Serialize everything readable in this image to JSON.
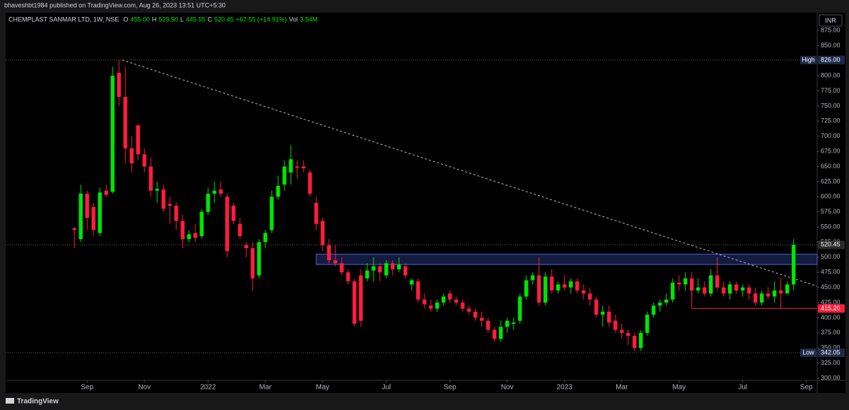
{
  "header": {
    "publisher": "bhaveshbt1984 published on TradingView.com, Aug 26, 2023 13:51 UTC+5:30"
  },
  "footer": {
    "brand": "TradingView"
  },
  "chart_data": {
    "type": "candlestick",
    "symbol": "CHEMPLAST SANMAR LTD, 1W, NSE",
    "ohlc_legend": [
      {
        "label": "O",
        "value": "455.00"
      },
      {
        "label": "H",
        "value": "529.90"
      },
      {
        "label": "L",
        "value": "445.55"
      },
      {
        "label": "C",
        "value": "520.45"
      },
      {
        "label": "",
        "value": "+67.55 (+14.91%)"
      }
    ],
    "volume": {
      "label": "Vol",
      "value": "3.54M"
    },
    "currency": "INR",
    "up_color": "#00e600",
    "down_color": "#ff1e3c",
    "grid": false,
    "candles": [
      [
        548,
        550,
        515,
        545
      ],
      [
        530,
        620,
        525,
        605
      ],
      [
        605,
        610,
        545,
        565
      ],
      [
        583,
        590,
        535,
        545
      ],
      [
        540,
        615,
        535,
        607
      ],
      [
        610,
        620,
        600,
        603
      ],
      [
        608,
        815,
        605,
        800
      ],
      [
        805,
        826,
        750,
        765
      ],
      [
        765,
        815,
        655,
        680
      ],
      [
        680,
        700,
        640,
        655
      ],
      [
        718,
        720,
        660,
        670
      ],
      [
        670,
        680,
        640,
        650
      ],
      [
        650,
        665,
        600,
        610
      ],
      [
        610,
        625,
        590,
        613
      ],
      [
        612,
        620,
        575,
        580
      ],
      [
        588,
        600,
        555,
        585
      ],
      [
        585,
        590,
        545,
        560
      ],
      [
        560,
        570,
        515,
        530
      ],
      [
        530,
        545,
        525,
        538
      ],
      [
        540,
        555,
        525,
        532
      ],
      [
        535,
        580,
        530,
        575
      ],
      [
        575,
        615,
        570,
        605
      ],
      [
        605,
        625,
        590,
        610
      ],
      [
        612,
        625,
        600,
        605
      ],
      [
        600,
        605,
        500,
        510
      ],
      [
        585,
        590,
        555,
        560
      ],
      [
        555,
        565,
        530,
        535
      ],
      [
        520,
        525,
        500,
        515
      ],
      [
        515,
        525,
        445,
        465
      ],
      [
        470,
        530,
        465,
        525
      ],
      [
        525,
        545,
        515,
        540
      ],
      [
        545,
        610,
        540,
        600
      ],
      [
        600,
        635,
        595,
        618
      ],
      [
        620,
        660,
        610,
        650
      ],
      [
        640,
        685,
        620,
        662
      ],
      [
        650,
        660,
        630,
        648
      ],
      [
        650,
        660,
        640,
        647
      ],
      [
        640,
        645,
        600,
        605
      ],
      [
        590,
        600,
        545,
        555
      ],
      [
        560,
        565,
        510,
        520
      ],
      [
        520,
        530,
        490,
        495
      ],
      [
        495,
        520,
        485,
        490
      ],
      [
        490,
        500,
        470,
        475
      ],
      [
        475,
        480,
        455,
        460
      ],
      [
        460,
        465,
        385,
        390
      ],
      [
        470,
        480,
        385,
        395
      ],
      [
        465,
        490,
        460,
        478
      ],
      [
        478,
        500,
        460,
        485
      ],
      [
        485,
        490,
        460,
        475
      ],
      [
        470,
        495,
        465,
        490
      ],
      [
        490,
        495,
        470,
        480
      ],
      [
        480,
        500,
        475,
        488
      ],
      [
        485,
        490,
        465,
        470
      ],
      [
        455,
        465,
        445,
        462
      ],
      [
        460,
        465,
        425,
        430
      ],
      [
        430,
        440,
        415,
        422
      ],
      [
        420,
        430,
        410,
        415
      ],
      [
        415,
        430,
        410,
        425
      ],
      [
        425,
        440,
        420,
        435
      ],
      [
        440,
        445,
        425,
        430
      ],
      [
        430,
        435,
        420,
        425
      ],
      [
        425,
        430,
        410,
        415
      ],
      [
        415,
        420,
        405,
        410
      ],
      [
        410,
        415,
        395,
        400
      ],
      [
        400,
        410,
        385,
        395
      ],
      [
        395,
        400,
        375,
        380
      ],
      [
        380,
        385,
        360,
        365
      ],
      [
        365,
        395,
        360,
        385
      ],
      [
        385,
        400,
        375,
        395
      ],
      [
        390,
        400,
        380,
        392
      ],
      [
        395,
        440,
        390,
        435
      ],
      [
        435,
        470,
        430,
        462
      ],
      [
        462,
        475,
        455,
        470
      ],
      [
        470,
        500,
        420,
        425
      ],
      [
        425,
        475,
        420,
        468
      ],
      [
        468,
        480,
        440,
        445
      ],
      [
        445,
        460,
        440,
        455
      ],
      [
        455,
        470,
        445,
        450
      ],
      [
        450,
        465,
        440,
        460
      ],
      [
        460,
        465,
        440,
        445
      ],
      [
        445,
        455,
        430,
        440
      ],
      [
        440,
        450,
        420,
        430
      ],
      [
        430,
        435,
        400,
        405
      ],
      [
        405,
        420,
        385,
        410
      ],
      [
        410,
        420,
        385,
        392
      ],
      [
        395,
        405,
        375,
        380
      ],
      [
        380,
        390,
        365,
        375
      ],
      [
        375,
        380,
        355,
        370
      ],
      [
        370,
        375,
        345,
        350
      ],
      [
        350,
        380,
        345,
        375
      ],
      [
        375,
        410,
        370,
        405
      ],
      [
        405,
        425,
        400,
        420
      ],
      [
        420,
        430,
        410,
        425
      ],
      [
        425,
        440,
        420,
        430
      ],
      [
        430,
        465,
        425,
        458
      ],
      [
        458,
        470,
        445,
        455
      ],
      [
        455,
        475,
        445,
        465
      ],
      [
        465,
        475,
        435,
        445
      ],
      [
        445,
        465,
        440,
        450
      ],
      [
        450,
        460,
        435,
        440
      ],
      [
        440,
        480,
        435,
        470
      ],
      [
        470,
        500,
        445,
        450
      ],
      [
        450,
        460,
        435,
        440
      ],
      [
        440,
        460,
        430,
        455
      ],
      [
        455,
        460,
        440,
        445
      ],
      [
        445,
        455,
        435,
        450
      ],
      [
        450,
        455,
        430,
        440
      ],
      [
        440,
        450,
        420,
        425
      ],
      [
        425,
        445,
        420,
        440
      ],
      [
        440,
        450,
        430,
        435
      ],
      [
        435,
        460,
        425,
        445
      ],
      [
        445,
        465,
        415,
        440
      ],
      [
        440,
        460,
        440,
        455
      ],
      [
        455,
        529.9,
        445.55,
        520.45
      ]
    ],
    "xlim": [
      -10.8,
      116.7
    ],
    "xticks": [
      {
        "value": 2,
        "label": "Sep"
      },
      {
        "value": 11,
        "label": "Nov"
      },
      {
        "value": 21,
        "label": "2022"
      },
      {
        "value": 30,
        "label": "Mar"
      },
      {
        "value": 39,
        "label": "May"
      },
      {
        "value": 49,
        "label": "Jul"
      },
      {
        "value": 59,
        "label": "Sep"
      },
      {
        "value": 68,
        "label": "Nov"
      },
      {
        "value": 77,
        "label": "2023"
      },
      {
        "value": 86,
        "label": "Mar"
      },
      {
        "value": 95,
        "label": "May"
      },
      {
        "value": 105,
        "label": "Jul"
      },
      {
        "value": 115,
        "label": "Sep"
      }
    ],
    "ylim": [
      296.5,
      904.2
    ],
    "yticks": [
      {
        "value": 300,
        "label": "300.00"
      },
      {
        "value": 325,
        "label": "325.00"
      },
      {
        "value": 350,
        "label": "350.00"
      },
      {
        "value": 375,
        "label": "375.00"
      },
      {
        "value": 400,
        "label": "400.00"
      },
      {
        "value": 425,
        "label": "425.00"
      },
      {
        "value": 450,
        "label": "450.00"
      },
      {
        "value": 475,
        "label": "475.00"
      },
      {
        "value": 500,
        "label": "500.00"
      },
      {
        "value": 525,
        "label": "525.00"
      },
      {
        "value": 550,
        "label": "550.00"
      },
      {
        "value": 575,
        "label": "575.00"
      },
      {
        "value": 600,
        "label": "600.00"
      },
      {
        "value": 625,
        "label": "625.00"
      },
      {
        "value": 650,
        "label": "650.00"
      },
      {
        "value": 675,
        "label": "675.00"
      },
      {
        "value": 700,
        "label": "700.00"
      },
      {
        "value": 725,
        "label": "725.00"
      },
      {
        "value": 750,
        "label": "750.00"
      },
      {
        "value": 775,
        "label": "775.00"
      },
      {
        "value": 800,
        "label": "800.00"
      },
      {
        "value": 825,
        "label": "825.00"
      },
      {
        "value": 850,
        "label": "850.00"
      },
      {
        "value": 875,
        "label": "875.00"
      }
    ],
    "high_marker": {
      "label": "High",
      "value": 826,
      "value_label": "826.00"
    },
    "low_marker": {
      "label": "Low",
      "value": 342.05,
      "value_label": "342.05"
    },
    "last_price": {
      "value": 520.45,
      "value_label": "520.45"
    },
    "support_line": {
      "value": 415.2,
      "value_label": "415.20",
      "x_start": 97,
      "color": "#ff1e3c"
    },
    "zone": {
      "low": 488,
      "high": 505,
      "x_start": 38,
      "color": "#2a3b8f"
    },
    "trend_line": {
      "x_start": 7.5,
      "y_start": 826,
      "x_end": 116.7,
      "y_end": 452
    }
  }
}
